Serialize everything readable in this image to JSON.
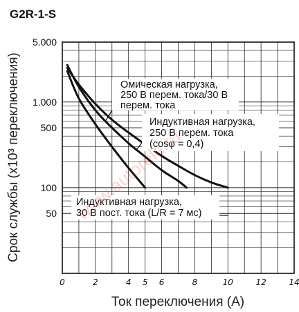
{
  "chart_data": {
    "type": "line",
    "title": "G2R-1-S",
    "xlabel": "Ток переключения (А)",
    "ylabel": "Срок службы (x10³ переключения)",
    "xlim": [
      0,
      14
    ],
    "ylim": [
      10,
      5000
    ],
    "y_scale": "log",
    "grid": true,
    "x_ticks": [
      {
        "value": 0,
        "label": "0"
      },
      {
        "value": 2,
        "label": "2"
      },
      {
        "value": 4,
        "label": "4"
      },
      {
        "value": 5,
        "label": "5"
      },
      {
        "value": 6,
        "label": "6"
      },
      {
        "value": 8,
        "label": "8"
      },
      {
        "value": 10,
        "label": "10"
      },
      {
        "value": 12,
        "label": "12"
      },
      {
        "value": 14,
        "label": "14"
      }
    ],
    "y_ticks": [
      {
        "value": 5000,
        "label": "5.000"
      },
      {
        "value": 1000,
        "label": "1.000"
      },
      {
        "value": 500,
        "label": "500"
      },
      {
        "value": 100,
        "label": "100"
      },
      {
        "value": 50,
        "label": "50"
      }
    ],
    "series": [
      {
        "name": "Омическая нагрузка, 250 В перем. тока/30 В перем. тока",
        "x": [
          0.3,
          1,
          2,
          3,
          4,
          5,
          6,
          7,
          8,
          9,
          10
        ],
        "y": [
          2500,
          1600,
          950,
          620,
          440,
          320,
          235,
          180,
          140,
          115,
          100
        ]
      },
      {
        "name": "Индуктивная нагрузка, 250 В перем. тока (cosφ = 0,4)",
        "x": [
          0.3,
          1,
          2,
          3,
          4,
          5,
          6,
          7,
          7.5
        ],
        "y": [
          2700,
          1500,
          800,
          500,
          330,
          230,
          160,
          120,
          100
        ]
      },
      {
        "name": "Индуктивная нагрузка, 30 В пост. тока (L/R = 7 мс)",
        "x": [
          0.3,
          1,
          2,
          3,
          4,
          5
        ],
        "y": [
          2300,
          1100,
          550,
          300,
          170,
          100
        ]
      }
    ],
    "annotations": [
      {
        "lines": [
          "Омическая нагрузка,",
          "250 В перем. тока/30 В",
          "перем. тока"
        ]
      },
      {
        "lines": [
          "Индуктивная нагрузка,",
          "250 В перем. тока",
          "(cosφ = 0,4)"
        ]
      },
      {
        "lines": [
          "Индуктивная нагрузка,",
          "30 В пост. тока (L/R = 7 мс)"
        ]
      }
    ]
  },
  "watermark": "www.autorele.ru"
}
